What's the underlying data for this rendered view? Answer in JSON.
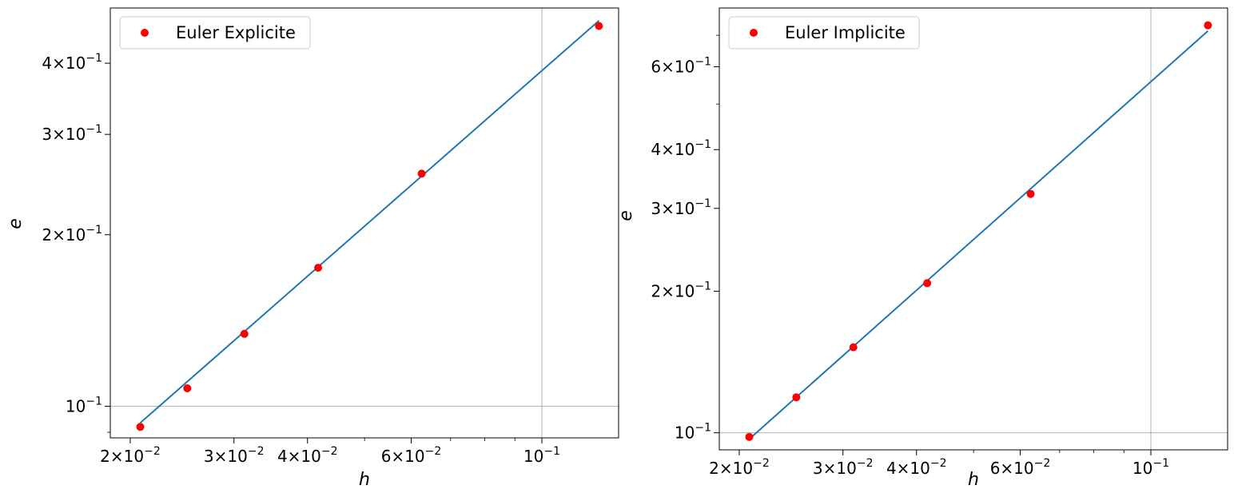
{
  "colors": {
    "marker": "#ff0000",
    "fit_line": "#1f77b4",
    "grid": "#b0b0b0",
    "axes": "#000000",
    "legend_border": "#cccccc"
  },
  "chart_data": [
    {
      "type": "scatter",
      "xscale": "log",
      "yscale": "log",
      "xlabel": "h",
      "ylabel": "e",
      "xlim": [
        0.0185,
        0.135
      ],
      "ylim": [
        0.088,
        0.5
      ],
      "grid": "major",
      "legend_position": "top-left",
      "series": [
        {
          "name": "Euler Explicite",
          "style": "markers",
          "x": [
            0.0208,
            0.025,
            0.03125,
            0.0417,
            0.0625,
            0.125
          ],
          "y": [
            0.092,
            0.1075,
            0.134,
            0.175,
            0.256,
            0.465
          ]
        },
        {
          "style": "line",
          "x": [
            0.0208,
            0.125
          ],
          "y": [
            0.0935,
            0.475
          ]
        }
      ],
      "x_ticks": [
        {
          "value": 0.02,
          "label": "2×10",
          "exp": "−2"
        },
        {
          "value": 0.03,
          "label": "3×10",
          "exp": "−2"
        },
        {
          "value": 0.04,
          "label": "4×10",
          "exp": "−2"
        },
        {
          "value": 0.06,
          "label": "6×10",
          "exp": "−2"
        },
        {
          "value": 0.1,
          "label": "10",
          "exp": "−1"
        }
      ],
      "x_minor_ticks": [
        0.05,
        0.07,
        0.08,
        0.09
      ],
      "y_ticks": [
        {
          "value": 0.1,
          "label": "10",
          "exp": "−1"
        },
        {
          "value": 0.2,
          "label": "2×10",
          "exp": "−1"
        },
        {
          "value": 0.3,
          "label": "3×10",
          "exp": "−1"
        },
        {
          "value": 0.4,
          "label": "4×10",
          "exp": "−1"
        }
      ],
      "y_minor_ticks": [
        0.09
      ]
    },
    {
      "type": "scatter",
      "xscale": "log",
      "yscale": "log",
      "xlabel": "h",
      "ylabel": "e",
      "xlim": [
        0.0185,
        0.135
      ],
      "ylim": [
        0.092,
        0.8
      ],
      "grid": "major",
      "legend_position": "top-left",
      "series": [
        {
          "name": "Euler Implicite",
          "style": "markers",
          "x": [
            0.0208,
            0.025,
            0.03125,
            0.0417,
            0.0625,
            0.125
          ],
          "y": [
            0.098,
            0.119,
            0.152,
            0.208,
            0.322,
            0.735
          ]
        },
        {
          "style": "line",
          "x": [
            0.0208,
            0.125
          ],
          "y": [
            0.097,
            0.715
          ]
        }
      ],
      "x_ticks": [
        {
          "value": 0.02,
          "label": "2×10",
          "exp": "−2"
        },
        {
          "value": 0.03,
          "label": "3×10",
          "exp": "−2"
        },
        {
          "value": 0.04,
          "label": "4×10",
          "exp": "−2"
        },
        {
          "value": 0.06,
          "label": "6×10",
          "exp": "−2"
        },
        {
          "value": 0.1,
          "label": "10",
          "exp": "−1"
        }
      ],
      "x_minor_ticks": [
        0.05,
        0.07,
        0.08,
        0.09
      ],
      "y_ticks": [
        {
          "value": 0.1,
          "label": "10",
          "exp": "−1"
        },
        {
          "value": 0.2,
          "label": "2×10",
          "exp": "−1"
        },
        {
          "value": 0.3,
          "label": "3×10",
          "exp": "−1"
        },
        {
          "value": 0.4,
          "label": "4×10",
          "exp": "−1"
        },
        {
          "value": 0.6,
          "label": "6×10",
          "exp": "−1"
        }
      ],
      "y_minor_ticks": [
        0.5,
        0.7
      ]
    }
  ]
}
